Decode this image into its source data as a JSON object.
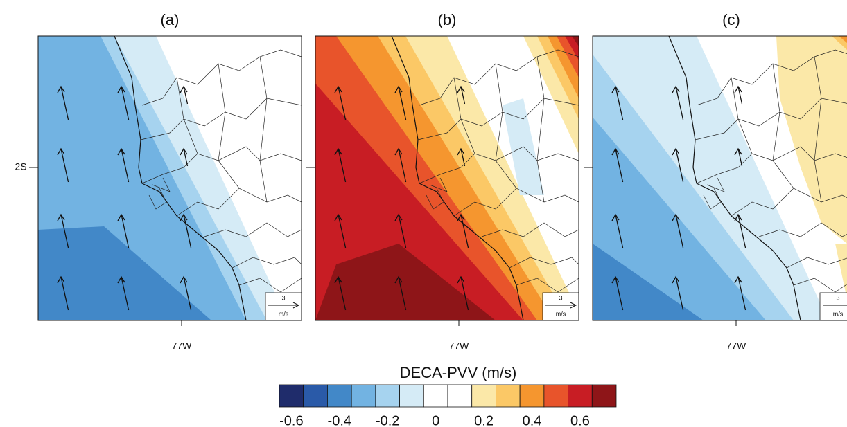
{
  "panels": [
    {
      "title": "(a)",
      "x_tick_label": "77W",
      "y_tick_label": "2S",
      "reference_vector": {
        "magnitude": 3,
        "unit": "m/s"
      }
    },
    {
      "title": "(b)",
      "x_tick_label": "77W",
      "reference_vector": {
        "magnitude": 3,
        "unit": "m/s"
      }
    },
    {
      "title": "(c)",
      "x_tick_label": "77W",
      "reference_vector": {
        "magnitude": 3,
        "unit": "m/s"
      }
    }
  ],
  "colorbar": {
    "title": "DECA-PVV (m/s)",
    "colors": [
      "#1f2c6b",
      "#2a5aa8",
      "#4288c8",
      "#72b3e2",
      "#a6d3ef",
      "#d5ebf6",
      "#ffffff",
      "#ffffff",
      "#fbe8a8",
      "#fbc866",
      "#f5962f",
      "#e8542b",
      "#c81d24",
      "#8e1518"
    ],
    "tick_labels": [
      -0.6,
      -0.4,
      -0.2,
      0,
      0.2,
      0.4,
      0.6
    ]
  }
}
